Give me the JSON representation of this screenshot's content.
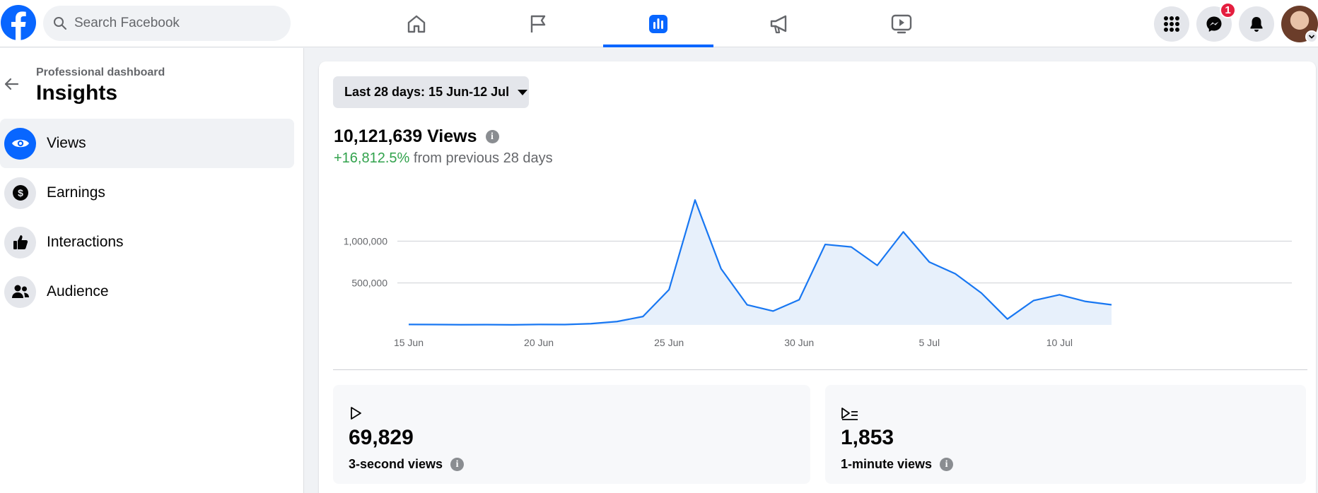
{
  "topbar": {
    "search_placeholder": "Search Facebook",
    "nav_tabs": [
      {
        "name": "home",
        "icon": "home-icon",
        "active": false
      },
      {
        "name": "pages",
        "icon": "flag-icon",
        "active": false
      },
      {
        "name": "insights",
        "icon": "bar-chart-icon",
        "active": true
      },
      {
        "name": "ads",
        "icon": "megaphone-icon",
        "active": false
      },
      {
        "name": "watch",
        "icon": "video-icon",
        "active": false
      }
    ],
    "messenger_badge": "1",
    "accent_color": "#0866ff"
  },
  "sidebar": {
    "breadcrumb": "Professional dashboard",
    "title": "Insights",
    "items": [
      {
        "label": "Views",
        "icon": "eye-icon",
        "active": true
      },
      {
        "label": "Earnings",
        "icon": "dollar-icon",
        "active": false
      },
      {
        "label": "Interactions",
        "icon": "thumbs-up-icon",
        "active": false
      },
      {
        "label": "Audience",
        "icon": "people-icon",
        "active": false
      }
    ]
  },
  "main": {
    "date_range_label": "Last 28 days: 15 Jun-12 Jul",
    "views_total": "10,121,639 Views",
    "change_pct": "+16,812.5%",
    "change_suffix": "from previous 28 days",
    "metrics": [
      {
        "icon": "play-icon",
        "value": "69,829",
        "label": "3-second views"
      },
      {
        "icon": "play-list-icon",
        "value": "1,853",
        "label": "1-minute views"
      }
    ]
  },
  "chart_data": {
    "type": "area",
    "x": [
      "15 Jun",
      "16 Jun",
      "17 Jun",
      "18 Jun",
      "19 Jun",
      "20 Jun",
      "21 Jun",
      "22 Jun",
      "23 Jun",
      "24 Jun",
      "25 Jun",
      "26 Jun",
      "27 Jun",
      "28 Jun",
      "29 Jun",
      "30 Jun",
      "1 Jul",
      "2 Jul",
      "3 Jul",
      "4 Jul",
      "5 Jul",
      "6 Jul",
      "7 Jul",
      "8 Jul",
      "9 Jul",
      "10 Jul",
      "11 Jul",
      "12 Jul"
    ],
    "x_tick_labels": [
      "15 Jun",
      "20 Jun",
      "25 Jun",
      "30 Jun",
      "5 Jul",
      "10 Jul"
    ],
    "x_tick_indices": [
      0,
      5,
      10,
      15,
      20,
      25
    ],
    "series": [
      {
        "values": [
          5000,
          4000,
          2000,
          3000,
          1000,
          5000,
          4000,
          15000,
          40000,
          100000,
          420000,
          1490000,
          670000,
          240000,
          165000,
          300000,
          960000,
          930000,
          710000,
          1110000,
          750000,
          610000,
          380000,
          70000,
          290000,
          360000,
          280000,
          240000
        ]
      }
    ],
    "y_ticks": [
      500000,
      1000000
    ],
    "y_tick_labels": [
      "500,000",
      "1,000,000"
    ],
    "ylim": [
      0,
      1500000
    ],
    "grid": true,
    "line_color": "#1877f2",
    "fill_color": "#e7f0fb"
  }
}
